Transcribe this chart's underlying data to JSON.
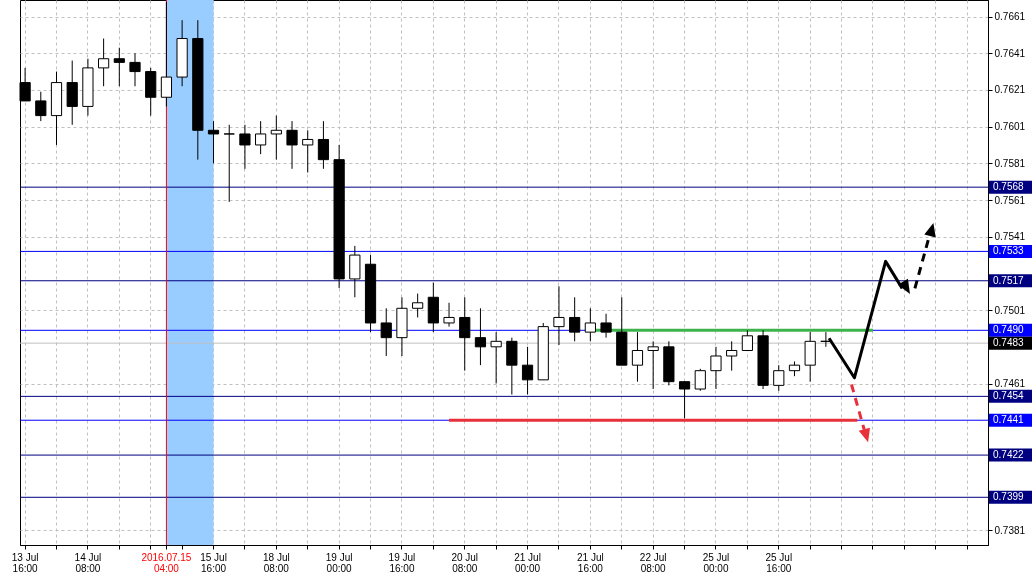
{
  "chart_data": {
    "type": "candlestick",
    "categories": [
      "13 Jul 16:00",
      null,
      null,
      null,
      "14 Jul 08:00",
      null,
      null,
      null,
      null,
      "2016.07.15 04:00",
      null,
      null,
      "15 Jul 16:00",
      null,
      null,
      null,
      "18 Jul 08:00",
      null,
      null,
      null,
      "19 Jul 00:00",
      null,
      null,
      null,
      "19 Jul 16:00",
      null,
      null,
      null,
      "20 Jul 08:00",
      null,
      null,
      null,
      "21 Jul 00:00",
      null,
      null,
      null,
      "21 Jul 16:00",
      null,
      null,
      null,
      "22 Jul 08:00",
      null,
      null,
      null,
      "25 Jul 00:00",
      null,
      null,
      null,
      "25 Jul 16:00",
      null,
      null,
      null,
      null,
      null,
      null,
      null,
      null,
      null,
      null,
      null,
      null,
      null
    ],
    "ohlc": [
      [
        0.7625,
        0.7633,
        0.7615,
        0.7615
      ],
      [
        0.7615,
        0.762,
        0.7604,
        0.7607
      ],
      [
        0.7607,
        0.7631,
        0.7591,
        0.7625
      ],
      [
        0.7625,
        0.7637,
        0.7602,
        0.7612
      ],
      [
        0.7612,
        0.7638,
        0.7607,
        0.7633
      ],
      [
        0.7633,
        0.7649,
        0.7623,
        0.7638
      ],
      [
        0.7638,
        0.7644,
        0.7623,
        0.7636
      ],
      [
        0.7636,
        0.7641,
        0.7623,
        0.7631
      ],
      [
        0.7631,
        0.7633,
        0.7607,
        0.7617
      ],
      [
        0.7617,
        0.7669,
        0.7612,
        0.7628
      ],
      [
        0.7628,
        0.7659,
        0.7623,
        0.7649
      ],
      [
        0.7649,
        0.7659,
        0.7583,
        0.7599
      ],
      [
        0.7599,
        0.7604,
        0.7581,
        0.7597
      ],
      [
        0.7597,
        0.7602,
        0.756,
        0.7597
      ],
      [
        0.7597,
        0.7602,
        0.7578,
        0.7591
      ],
      [
        0.7591,
        0.7604,
        0.7586,
        0.7597
      ],
      [
        0.7597,
        0.7607,
        0.7583,
        0.7599
      ],
      [
        0.7599,
        0.7604,
        0.7578,
        0.7591
      ],
      [
        0.7591,
        0.7599,
        0.7576,
        0.7594
      ],
      [
        0.7594,
        0.7604,
        0.7578,
        0.7583
      ],
      [
        0.7583,
        0.7591,
        0.7513,
        0.7518
      ],
      [
        0.7518,
        0.7536,
        0.7508,
        0.7531
      ],
      [
        0.7526,
        0.7531,
        0.7489,
        0.7494
      ],
      [
        0.7494,
        0.7502,
        0.7476,
        0.7486
      ],
      [
        0.7486,
        0.7508,
        0.7476,
        0.7502
      ],
      [
        0.7502,
        0.751,
        0.7497,
        0.7505
      ],
      [
        0.7508,
        0.7516,
        0.7489,
        0.7494
      ],
      [
        0.7494,
        0.7505,
        0.7492,
        0.7497
      ],
      [
        0.7497,
        0.7508,
        0.7468,
        0.7486
      ],
      [
        0.7486,
        0.7502,
        0.7471,
        0.7481
      ],
      [
        0.7481,
        0.7489,
        0.7461,
        0.7484
      ],
      [
        0.7484,
        0.7486,
        0.7455,
        0.7471
      ],
      [
        0.7471,
        0.7481,
        0.7455,
        0.7463
      ],
      [
        0.7463,
        0.7494,
        0.7463,
        0.7492
      ],
      [
        0.7492,
        0.7514,
        0.7482,
        0.7497
      ],
      [
        0.7497,
        0.7508,
        0.7484,
        0.7489
      ],
      [
        0.7489,
        0.7502,
        0.7484,
        0.7494
      ],
      [
        0.7494,
        0.7499,
        0.7486,
        0.7489
      ],
      [
        0.7489,
        0.7508,
        0.7471,
        0.7471
      ],
      [
        0.7471,
        0.7489,
        0.7462,
        0.7479
      ],
      [
        0.7479,
        0.7484,
        0.7458,
        0.7481
      ],
      [
        0.7481,
        0.7484,
        0.746,
        0.7462
      ],
      [
        0.7462,
        0.7462,
        0.7442,
        0.7458
      ],
      [
        0.7458,
        0.7469,
        0.7457,
        0.7468
      ],
      [
        0.7468,
        0.7481,
        0.7458,
        0.7476
      ],
      [
        0.7476,
        0.7484,
        0.7468,
        0.7479
      ],
      [
        0.7479,
        0.749,
        0.7479,
        0.7487
      ],
      [
        0.7487,
        0.749,
        0.7458,
        0.746
      ],
      [
        0.746,
        0.7471,
        0.7457,
        0.7468
      ],
      [
        0.7468,
        0.7473,
        0.7465,
        0.7471
      ],
      [
        0.7471,
        0.7489,
        0.7462,
        0.7484
      ],
      [
        0.7484,
        0.7489,
        0.7481,
        0.7484
      ],
      null,
      null,
      null,
      null,
      null,
      null,
      null,
      null,
      null,
      null
    ],
    "series": [
      {
        "type": "line",
        "color": "#3cb44b",
        "values": [
          null,
          null,
          null,
          null,
          null,
          null,
          null,
          null,
          null,
          null,
          null,
          null,
          null,
          null,
          null,
          null,
          null,
          null,
          null,
          null,
          null,
          null,
          null,
          null,
          null,
          null,
          null,
          null,
          null,
          null,
          null,
          null,
          null,
          null,
          null,
          null,
          0.749,
          0.749,
          0.749,
          0.749,
          0.749,
          0.749,
          0.749,
          0.749,
          0.749,
          0.749,
          0.749,
          0.749,
          0.749,
          0.749,
          0.749,
          0.749,
          0.749,
          0.749,
          0.749,
          null,
          null,
          null,
          null,
          null,
          null,
          null
        ]
      },
      {
        "type": "line",
        "color": "#e8303a",
        "values": [
          null,
          null,
          null,
          null,
          null,
          null,
          null,
          null,
          null,
          null,
          null,
          null,
          null,
          null,
          null,
          null,
          null,
          null,
          null,
          null,
          null,
          null,
          null,
          null,
          null,
          null,
          null,
          0.7441,
          0.7441,
          0.7441,
          0.7441,
          0.7441,
          0.7441,
          0.7441,
          0.7441,
          0.7441,
          0.7441,
          0.7441,
          0.7441,
          0.7441,
          0.7441,
          0.7441,
          0.7441,
          0.7441,
          0.7441,
          0.7441,
          0.7441,
          0.7441,
          0.7441,
          0.7441,
          0.7441,
          0.7441,
          0.7441,
          0.7441,
          null,
          null,
          null,
          null,
          null,
          null,
          null,
          null
        ]
      }
    ],
    "ylim": [
      0.7373,
      0.767
    ],
    "yticks": [
      0.7661,
      0.7641,
      0.7621,
      0.7601,
      0.7581,
      0.7561,
      0.7541,
      0.7501,
      0.7461,
      0.7381
    ],
    "ref_lines": [
      {
        "axis": "y",
        "value": 0.7568,
        "label": "0.7568",
        "color": "#000080"
      },
      {
        "axis": "y",
        "value": 0.7533,
        "label": "0.7533",
        "color": "#0000ff"
      },
      {
        "axis": "y",
        "value": 0.7517,
        "label": "0.7517",
        "color": "#000080"
      },
      {
        "axis": "y",
        "value": 0.749,
        "label": "0.7490",
        "color": "#0000ff"
      },
      {
        "axis": "y",
        "value": 0.7483,
        "label": "0.7483",
        "color": "#c0c0c0"
      },
      {
        "axis": "y",
        "value": 0.7454,
        "label": "0.7454",
        "color": "#000080"
      },
      {
        "axis": "y",
        "value": 0.7441,
        "label": "0.7441",
        "color": "#0000ff"
      },
      {
        "axis": "y",
        "value": 0.7422,
        "label": "0.7422",
        "color": "#000080"
      },
      {
        "axis": "y",
        "value": 0.7399,
        "label": "0.7399",
        "color": "#000080"
      },
      {
        "axis": "x",
        "value": "2016.07.15 04:00",
        "color": "#ff0000"
      }
    ],
    "bands": [
      {
        "axis": "x",
        "from": "2016.07.15 04:00",
        "to": "15 Jul 16:00",
        "color": "#99ccff"
      }
    ],
    "grid": true
  }
}
